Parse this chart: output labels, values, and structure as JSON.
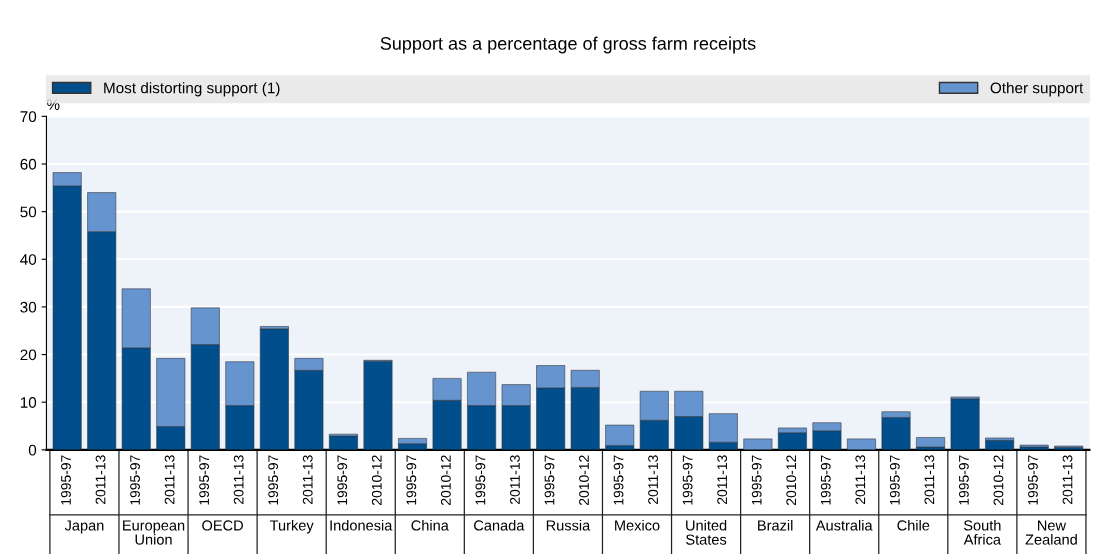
{
  "chart_data": {
    "type": "bar",
    "title": "Support as a percentage of gross farm receipts",
    "ylabel": "%",
    "categories": [
      "1995-97",
      "2011-13",
      "1995-97",
      "2011-13",
      "1995-97",
      "2011-13",
      "1995-97",
      "2011-13",
      "1995-97",
      "2010-12",
      "1995-97",
      "2010-12",
      "1995-97",
      "2011-13",
      "1995-97",
      "2010-12",
      "1995-97",
      "2011-13",
      "1995-97",
      "2011-13",
      "1995-97",
      "2010-12",
      "1995-97",
      "2011-13",
      "1995-97",
      "2011-13",
      "1995-97",
      "2010-12",
      "1995-97",
      "2011-13"
    ],
    "annotations": [
      "Japan",
      "European Union",
      "OECD",
      "Turkey",
      "Indonesia",
      "China",
      "Canada",
      "Russia",
      "Mexico",
      "United States",
      "Brazil",
      "Australia",
      "Chile",
      "South Africa",
      "New Zealand"
    ],
    "stacked": true,
    "series": [
      {
        "name": "Most distorting support (1)",
        "color": "#004f8c",
        "values": [
          55.4,
          45.8,
          21.4,
          4.9,
          22.1,
          9.3,
          25.4,
          16.7,
          2.9,
          18.6,
          1.3,
          10.4,
          9.3,
          9.3,
          13.0,
          13.1,
          0.9,
          6.2,
          7.0,
          1.6,
          0,
          3.6,
          4.0,
          0,
          6.8,
          0.6,
          10.7,
          2.0,
          0.6,
          0.5
        ]
      },
      {
        "name": "Other support",
        "color": "#6694cf",
        "values": [
          2.8,
          8.2,
          12.4,
          14.3,
          7.7,
          9.2,
          0.5,
          2.5,
          0.4,
          0.2,
          1.1,
          4.6,
          7.0,
          4.4,
          4.7,
          3.6,
          4.3,
          6.1,
          5.3,
          6.0,
          2.3,
          1.0,
          1.7,
          2.3,
          1.2,
          2.0,
          0.4,
          0.5,
          0.4,
          0.3
        ]
      }
    ],
    "ylim": [
      0,
      70
    ],
    "yticks": [
      0,
      10,
      20,
      30,
      40,
      50,
      60,
      70
    ],
    "grid": "y",
    "legend": "top"
  }
}
